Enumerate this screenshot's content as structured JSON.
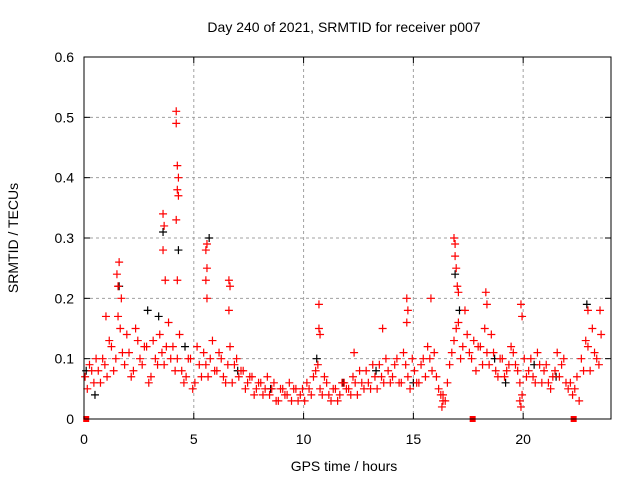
{
  "chart_data": {
    "type": "scatter",
    "title": "Day 240 of 2021, SRMTID for receiver p007",
    "xlabel": "GPS time / hours",
    "ylabel": "SRMTID / TECUs",
    "xlim": [
      0,
      24
    ],
    "ylim": [
      0,
      0.6
    ],
    "xticks": [
      0,
      5,
      10,
      15,
      20
    ],
    "xtick_labels": [
      "0",
      "5",
      "10",
      "15",
      "20"
    ],
    "yticks": [
      0,
      0.1,
      0.2,
      0.3,
      0.4,
      0.5,
      0.6
    ],
    "ytick_labels": [
      "0",
      "0.1",
      "0.2",
      "0.3",
      "0.4",
      "0.5",
      "0.6"
    ],
    "grid": true,
    "colors": {
      "primary": "#ff0000",
      "secondary": "#000000"
    },
    "series": [
      {
        "name": "secondary",
        "color": "#000000",
        "marker": "plus",
        "points": [
          [
            0.1,
            0.08
          ],
          [
            1.6,
            0.22
          ],
          [
            3.6,
            0.31
          ],
          [
            4.3,
            0.28
          ],
          [
            5.7,
            0.3
          ],
          [
            3.4,
            0.17
          ],
          [
            2.9,
            0.18
          ],
          [
            4.6,
            0.12
          ],
          [
            10.6,
            0.1
          ],
          [
            13.3,
            0.08
          ],
          [
            15.0,
            0.06
          ],
          [
            16.9,
            0.24
          ],
          [
            17.1,
            0.18
          ],
          [
            19.2,
            0.06
          ],
          [
            22.9,
            0.19
          ],
          [
            0.5,
            0.04
          ],
          [
            7.0,
            0.08
          ],
          [
            8.5,
            0.05
          ],
          [
            11.8,
            0.06
          ],
          [
            20.5,
            0.09
          ],
          [
            21.5,
            0.07
          ],
          [
            18.7,
            0.1
          ]
        ]
      },
      {
        "name": "primary-a",
        "color": "#ff0000",
        "marker": "plus",
        "x_start": 0.05,
        "x_step": 0.2,
        "values": [
          0.07,
          0.09,
          0.06,
          0.08,
          0.1,
          0.07,
          0.12,
          0.1,
          0.15,
          0.09,
          0.11,
          0.08,
          0.13,
          0.09,
          0.12,
          0.07,
          0.1,
          0.14,
          0.09,
          0.16,
          0.12,
          0.1,
          0.08,
          0.07,
          0.1,
          0.06,
          0.09,
          0.11,
          0.07,
          0.13,
          0.08,
          0.1,
          0.06,
          0.12,
          0.09,
          0.07,
          0.08,
          0.06,
          0.07,
          0.05,
          0.06,
          0.05,
          0.04,
          0.06,
          0.03,
          0.05,
          0.04,
          0.03,
          0.05,
          0.04,
          0.03,
          0.05,
          0.07,
          0.09,
          0.04,
          0.06,
          0.03,
          0.05,
          0.04,
          0.06,
          0.05,
          0.07,
          0.04,
          0.06,
          0.08,
          0.05,
          0.07,
          0.09,
          0.06,
          0.08,
          0.07,
          0.1,
          0.06,
          0.09,
          0.05,
          0.08,
          0.06,
          0.1,
          0.12,
          0.08,
          0.07,
          0.04,
          0.03,
          0.09,
          0.13,
          0.16,
          0.12,
          0.14,
          0.1,
          0.08,
          0.12,
          0.15,
          0.09,
          0.11,
          0.07,
          0.1,
          0.08,
          0.12,
          0.09,
          0.06,
          0.1,
          0.08,
          0.07,
          0.11,
          0.06,
          0.09,
          0.05,
          0.08,
          0.07,
          0.1,
          0.05,
          0.04,
          0.07,
          0.1,
          0.13,
          0.08,
          0.11,
          0.09
        ]
      },
      {
        "name": "primary-b",
        "color": "#ff0000",
        "marker": "plus",
        "x_start": 0.15,
        "x_step": 0.2,
        "values": [
          0.05,
          0.08,
          0.1,
          0.06,
          0.09,
          0.13,
          0.08,
          0.17,
          0.11,
          0.14,
          0.07,
          0.15,
          0.1,
          0.12,
          0.06,
          0.13,
          0.09,
          0.11,
          0.12,
          0.1,
          0.08,
          0.14,
          0.06,
          0.1,
          0.05,
          0.12,
          0.07,
          0.09,
          0.1,
          0.08,
          0.11,
          0.07,
          0.09,
          0.06,
          0.1,
          0.08,
          0.05,
          0.07,
          0.04,
          0.06,
          0.04,
          0.07,
          0.05,
          0.03,
          0.05,
          0.04,
          0.06,
          0.05,
          0.03,
          0.05,
          0.06,
          0.04,
          0.08,
          0.05,
          0.07,
          0.04,
          0.05,
          0.03,
          0.06,
          0.05,
          0.04,
          0.06,
          0.08,
          0.05,
          0.06,
          0.09,
          0.05,
          0.07,
          0.1,
          0.06,
          0.09,
          0.06,
          0.11,
          0.07,
          0.1,
          0.06,
          0.09,
          0.07,
          0.1,
          0.11,
          0.05,
          0.03,
          0.06,
          0.11,
          0.15,
          0.1,
          0.18,
          0.11,
          0.13,
          0.12,
          0.09,
          0.11,
          0.14,
          0.08,
          0.1,
          0.07,
          0.09,
          0.11,
          0.08,
          0.04,
          0.07,
          0.1,
          0.06,
          0.09,
          0.08,
          0.06,
          0.07,
          0.11,
          0.09,
          0.06,
          0.06,
          0.05,
          0.03,
          0.08,
          0.12,
          0.15,
          0.1,
          0.14
        ]
      },
      {
        "name": "primary-peaks",
        "color": "#ff0000",
        "marker": "plus",
        "points": [
          [
            1.5,
            0.24
          ],
          [
            1.6,
            0.26
          ],
          [
            1.55,
            0.22
          ],
          [
            1.7,
            0.2
          ],
          [
            3.6,
            0.34
          ],
          [
            3.65,
            0.32
          ],
          [
            3.6,
            0.28
          ],
          [
            3.7,
            0.23
          ],
          [
            4.2,
            0.51
          ],
          [
            4.2,
            0.49
          ],
          [
            4.25,
            0.42
          ],
          [
            4.3,
            0.4
          ],
          [
            4.3,
            0.37
          ],
          [
            4.25,
            0.38
          ],
          [
            4.2,
            0.33
          ],
          [
            4.25,
            0.23
          ],
          [
            5.6,
            0.29
          ],
          [
            5.55,
            0.28
          ],
          [
            5.6,
            0.25
          ],
          [
            5.55,
            0.23
          ],
          [
            5.6,
            0.2
          ],
          [
            6.6,
            0.23
          ],
          [
            6.65,
            0.22
          ],
          [
            6.6,
            0.18
          ],
          [
            10.7,
            0.19
          ],
          [
            10.7,
            0.15
          ],
          [
            10.75,
            0.14
          ],
          [
            13.6,
            0.15
          ],
          [
            14.7,
            0.2
          ],
          [
            14.75,
            0.18
          ],
          [
            14.7,
            0.16
          ],
          [
            15.8,
            0.2
          ],
          [
            16.85,
            0.3
          ],
          [
            16.9,
            0.29
          ],
          [
            16.9,
            0.27
          ],
          [
            16.95,
            0.25
          ],
          [
            17.0,
            0.22
          ],
          [
            17.05,
            0.21
          ],
          [
            16.3,
            0.02
          ],
          [
            16.35,
            0.04
          ],
          [
            18.3,
            0.21
          ],
          [
            18.35,
            0.19
          ],
          [
            19.9,
            0.19
          ],
          [
            19.95,
            0.17
          ],
          [
            19.9,
            0.02
          ],
          [
            19.85,
            0.03
          ],
          [
            22.95,
            0.18
          ],
          [
            23.5,
            0.18
          ],
          [
            1.0,
            0.17
          ],
          [
            12.3,
            0.11
          ]
        ]
      },
      {
        "name": "zero-markers",
        "color": "#ff0000",
        "marker": "square",
        "points": [
          [
            0.1,
            0
          ],
          [
            17.7,
            0
          ],
          [
            22.3,
            0
          ]
        ]
      }
    ]
  }
}
